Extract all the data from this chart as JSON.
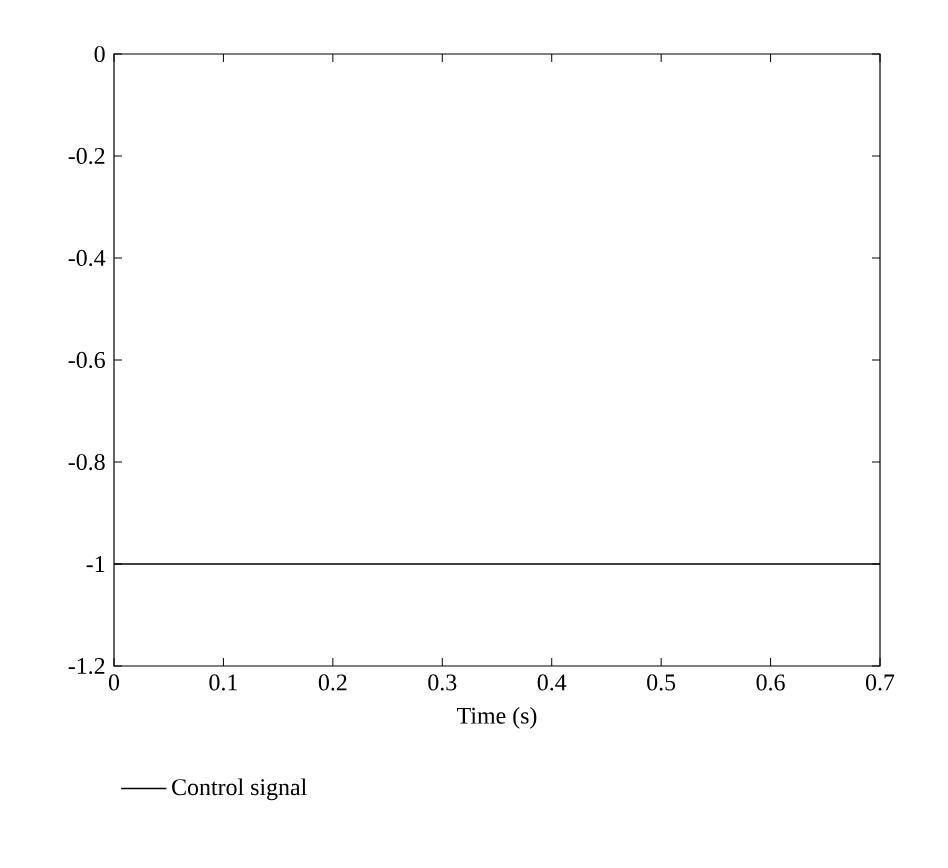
{
  "chart_data": {
    "type": "line",
    "xlabel": "Time (s)",
    "x": [
      0,
      0.7
    ],
    "series": [
      {
        "name": "Control signal",
        "color": "#000000",
        "values": [
          -1,
          -1
        ]
      }
    ],
    "xlim": [
      0,
      0.7
    ],
    "xticks": [
      0,
      0.1,
      0.2,
      0.3,
      0.4,
      0.5,
      0.6,
      0.7
    ],
    "ylim": [
      -1.2,
      0
    ],
    "yticks": [
      -1.2,
      -1,
      -0.8,
      -0.6,
      -0.4,
      -0.2,
      0
    ],
    "grid": false,
    "legend": "bottom",
    "marker": "none",
    "line_style": "solid"
  }
}
